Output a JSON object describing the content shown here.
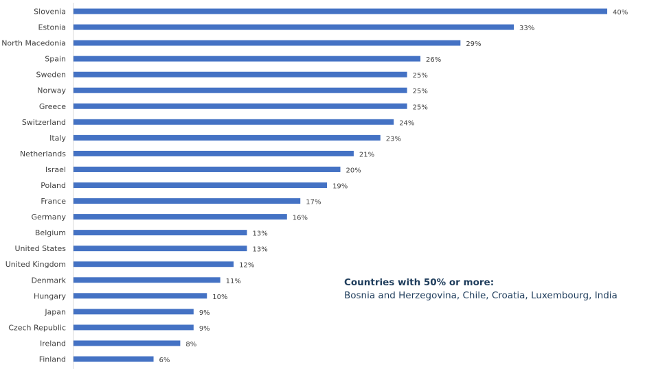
{
  "chart_data": {
    "type": "bar",
    "orientation": "horizontal",
    "categories": [
      "Slovenia",
      "Estonia",
      "North Macedonia",
      "Spain",
      "Sweden",
      "Norway",
      "Greece",
      "Switzerland",
      "Italy",
      "Netherlands",
      "Israel",
      "Poland",
      "France",
      "Germany",
      "Belgium",
      "United States",
      "United Kingdom",
      "Denmark",
      "Hungary",
      "Japan",
      "Czech Republic",
      "Ireland",
      "Finland"
    ],
    "values": [
      40,
      33,
      29,
      26,
      25,
      25,
      25,
      24,
      23,
      21,
      20,
      19,
      17,
      16,
      13,
      13,
      12,
      11,
      10,
      9,
      9,
      8,
      6
    ],
    "value_labels": [
      "40%",
      "33%",
      "29%",
      "26%",
      "25%",
      "25%",
      "25%",
      "24%",
      "23%",
      "21%",
      "20%",
      "19%",
      "17%",
      "16%",
      "13%",
      "13%",
      "12%",
      "11%",
      "10%",
      "9%",
      "9%",
      "8%",
      "6%"
    ],
    "xlim": [
      0,
      40
    ],
    "grid": false,
    "bar_color": "#4472c4",
    "annotation": {
      "title": "Countries with 50% or more:",
      "text": "Bosnia and Herzegovina, Chile, Croatia, Luxembourg, India"
    }
  }
}
